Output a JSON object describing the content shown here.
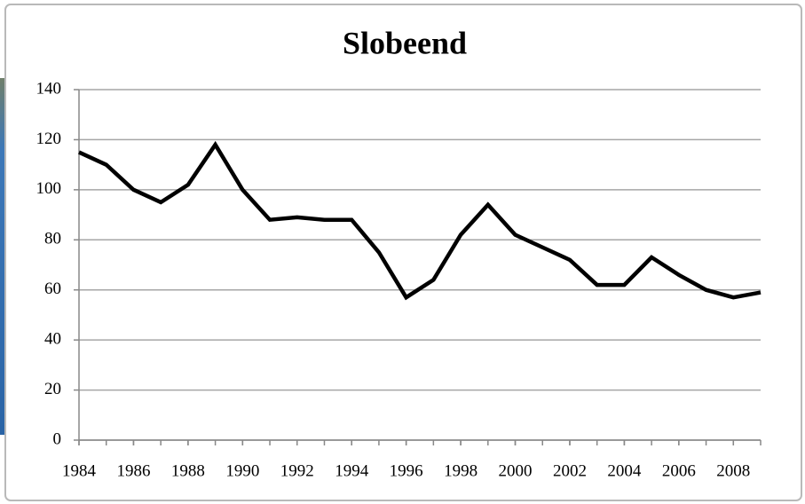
{
  "chart_data": {
    "type": "line",
    "title": "Slobeend",
    "x": [
      1984,
      1985,
      1986,
      1987,
      1988,
      1989,
      1990,
      1991,
      1992,
      1993,
      1994,
      1995,
      1996,
      1997,
      1998,
      1999,
      2000,
      2001,
      2002,
      2003,
      2004,
      2005,
      2006,
      2007,
      2008,
      2009
    ],
    "values": [
      115,
      110,
      100,
      95,
      102,
      118,
      100,
      88,
      89,
      88,
      88,
      75,
      57,
      64,
      82,
      94,
      82,
      77,
      72,
      62,
      62,
      73,
      66,
      60,
      57,
      59
    ],
    "color": "#000000",
    "xlim": [
      1984,
      2009
    ],
    "xticks": [
      1984,
      1986,
      1988,
      1990,
      1992,
      1994,
      1996,
      1998,
      2000,
      2002,
      2004,
      2006,
      2008
    ],
    "ylim": [
      0,
      140
    ],
    "yticks": [
      0,
      20,
      40,
      60,
      80,
      100,
      120,
      140
    ],
    "grid": true
  }
}
